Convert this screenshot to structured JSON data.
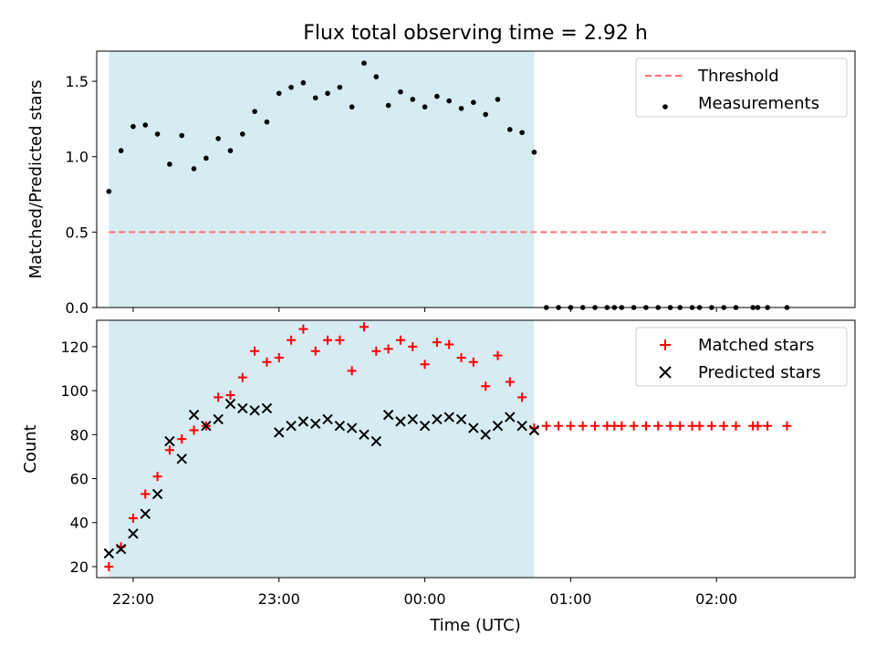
{
  "figure": {
    "title": "Flux total observing time = 2.92 h",
    "xlabel": "Time (UTC)",
    "x_ticks": [
      "22:00",
      "23:00",
      "00:00",
      "01:00",
      "02:00"
    ]
  },
  "chart_data": [
    {
      "type": "scatter",
      "ylabel": "Matched/Predicted stars",
      "ylim": [
        0,
        1.7
      ],
      "y_ticks": [
        "0.0",
        "0.5",
        "1.0",
        "1.5"
      ],
      "xlim": [
        "21:45",
        "02:57"
      ],
      "shaded_region": {
        "from": "21:50",
        "to": "00:45",
        "color": "#add8e6"
      },
      "legend": {
        "placement": "top-right",
        "entries": [
          "Threshold",
          "Measurements"
        ]
      },
      "series": [
        {
          "name": "Threshold",
          "style": "dashed-line",
          "color": "#ff6f6f",
          "points": [
            {
              "x": "21:50",
              "y": 0.5
            },
            {
              "x": "02:45",
              "y": 0.5
            }
          ]
        },
        {
          "name": "Measurements",
          "style": "dot",
          "color": "#000000",
          "points": [
            {
              "x": "21:50",
              "y": 0.77
            },
            {
              "x": "21:55",
              "y": 1.04
            },
            {
              "x": "22:00",
              "y": 1.2
            },
            {
              "x": "22:05",
              "y": 1.21
            },
            {
              "x": "22:10",
              "y": 1.15
            },
            {
              "x": "22:15",
              "y": 0.95
            },
            {
              "x": "22:20",
              "y": 1.14
            },
            {
              "x": "22:25",
              "y": 0.92
            },
            {
              "x": "22:30",
              "y": 0.99
            },
            {
              "x": "22:35",
              "y": 1.12
            },
            {
              "x": "22:40",
              "y": 1.04
            },
            {
              "x": "22:45",
              "y": 1.15
            },
            {
              "x": "22:50",
              "y": 1.3
            },
            {
              "x": "22:55",
              "y": 1.23
            },
            {
              "x": "23:00",
              "y": 1.42
            },
            {
              "x": "23:05",
              "y": 1.46
            },
            {
              "x": "23:10",
              "y": 1.49
            },
            {
              "x": "23:15",
              "y": 1.39
            },
            {
              "x": "23:20",
              "y": 1.42
            },
            {
              "x": "23:25",
              "y": 1.46
            },
            {
              "x": "23:30",
              "y": 1.33
            },
            {
              "x": "23:35",
              "y": 1.62
            },
            {
              "x": "23:40",
              "y": 1.53
            },
            {
              "x": "23:45",
              "y": 1.34
            },
            {
              "x": "23:50",
              "y": 1.43
            },
            {
              "x": "23:55",
              "y": 1.38
            },
            {
              "x": "00:00",
              "y": 1.33
            },
            {
              "x": "00:05",
              "y": 1.4
            },
            {
              "x": "00:10",
              "y": 1.37
            },
            {
              "x": "00:15",
              "y": 1.32
            },
            {
              "x": "00:20",
              "y": 1.36
            },
            {
              "x": "00:25",
              "y": 1.28
            },
            {
              "x": "00:30",
              "y": 1.38
            },
            {
              "x": "00:35",
              "y": 1.18
            },
            {
              "x": "00:40",
              "y": 1.16
            },
            {
              "x": "00:45",
              "y": 1.03
            },
            {
              "x": "00:50",
              "y": 0
            },
            {
              "x": "00:55",
              "y": 0
            },
            {
              "x": "01:00",
              "y": 0
            },
            {
              "x": "01:05",
              "y": 0
            },
            {
              "x": "01:10",
              "y": 0
            },
            {
              "x": "01:15",
              "y": 0
            },
            {
              "x": "01:18",
              "y": 0
            },
            {
              "x": "01:21",
              "y": 0
            },
            {
              "x": "01:26",
              "y": 0
            },
            {
              "x": "01:31",
              "y": 0
            },
            {
              "x": "01:36",
              "y": 0
            },
            {
              "x": "01:41",
              "y": 0
            },
            {
              "x": "01:45",
              "y": 0
            },
            {
              "x": "01:50",
              "y": 0
            },
            {
              "x": "01:53",
              "y": 0
            },
            {
              "x": "01:58",
              "y": 0
            },
            {
              "x": "02:03",
              "y": 0
            },
            {
              "x": "02:08",
              "y": 0
            },
            {
              "x": "02:15",
              "y": 0
            },
            {
              "x": "02:17",
              "y": 0
            },
            {
              "x": "02:21",
              "y": 0
            },
            {
              "x": "02:29",
              "y": 0
            }
          ]
        }
      ]
    },
    {
      "type": "scatter",
      "ylabel": "Count",
      "ylim": [
        15,
        132
      ],
      "y_ticks": [
        "20",
        "40",
        "60",
        "80",
        "100",
        "120"
      ],
      "xlim": [
        "21:45",
        "02:57"
      ],
      "shaded_region": {
        "from": "21:50",
        "to": "00:45",
        "color": "#add8e6"
      },
      "legend": {
        "placement": "top-right",
        "entries": [
          "Matched stars",
          "Predicted stars"
        ]
      },
      "series": [
        {
          "name": "Matched stars",
          "style": "plus",
          "color": "#ff0000",
          "points": [
            {
              "x": "21:50",
              "y": 20
            },
            {
              "x": "21:55",
              "y": 29
            },
            {
              "x": "22:00",
              "y": 42
            },
            {
              "x": "22:05",
              "y": 53
            },
            {
              "x": "22:10",
              "y": 61
            },
            {
              "x": "22:15",
              "y": 73
            },
            {
              "x": "22:20",
              "y": 78
            },
            {
              "x": "22:25",
              "y": 82
            },
            {
              "x": "22:30",
              "y": 84
            },
            {
              "x": "22:35",
              "y": 97
            },
            {
              "x": "22:40",
              "y": 98
            },
            {
              "x": "22:45",
              "y": 106
            },
            {
              "x": "22:50",
              "y": 118
            },
            {
              "x": "22:55",
              "y": 113
            },
            {
              "x": "23:00",
              "y": 115
            },
            {
              "x": "23:05",
              "y": 123
            },
            {
              "x": "23:10",
              "y": 128
            },
            {
              "x": "23:15",
              "y": 118
            },
            {
              "x": "23:20",
              "y": 123
            },
            {
              "x": "23:25",
              "y": 123
            },
            {
              "x": "23:30",
              "y": 109
            },
            {
              "x": "23:35",
              "y": 129
            },
            {
              "x": "23:40",
              "y": 118
            },
            {
              "x": "23:45",
              "y": 119
            },
            {
              "x": "23:50",
              "y": 123
            },
            {
              "x": "23:55",
              "y": 120
            },
            {
              "x": "00:00",
              "y": 112
            },
            {
              "x": "00:05",
              "y": 122
            },
            {
              "x": "00:10",
              "y": 121
            },
            {
              "x": "00:15",
              "y": 115
            },
            {
              "x": "00:20",
              "y": 113
            },
            {
              "x": "00:25",
              "y": 102
            },
            {
              "x": "00:30",
              "y": 116
            },
            {
              "x": "00:35",
              "y": 104
            },
            {
              "x": "00:40",
              "y": 97
            },
            {
              "x": "00:45",
              "y": 83
            },
            {
              "x": "00:50",
              "y": 84
            },
            {
              "x": "00:55",
              "y": 84
            },
            {
              "x": "01:00",
              "y": 84
            },
            {
              "x": "01:05",
              "y": 84
            },
            {
              "x": "01:10",
              "y": 84
            },
            {
              "x": "01:15",
              "y": 84
            },
            {
              "x": "01:18",
              "y": 84
            },
            {
              "x": "01:21",
              "y": 84
            },
            {
              "x": "01:26",
              "y": 84
            },
            {
              "x": "01:31",
              "y": 84
            },
            {
              "x": "01:36",
              "y": 84
            },
            {
              "x": "01:41",
              "y": 84
            },
            {
              "x": "01:45",
              "y": 84
            },
            {
              "x": "01:50",
              "y": 84
            },
            {
              "x": "01:53",
              "y": 84
            },
            {
              "x": "01:58",
              "y": 84
            },
            {
              "x": "02:03",
              "y": 84
            },
            {
              "x": "02:08",
              "y": 84
            },
            {
              "x": "02:15",
              "y": 84
            },
            {
              "x": "02:17",
              "y": 84
            },
            {
              "x": "02:21",
              "y": 84
            },
            {
              "x": "02:29",
              "y": 84
            }
          ]
        },
        {
          "name": "Predicted stars",
          "style": "x",
          "color": "#000000",
          "points": [
            {
              "x": "21:50",
              "y": 26
            },
            {
              "x": "21:55",
              "y": 28
            },
            {
              "x": "22:00",
              "y": 35
            },
            {
              "x": "22:05",
              "y": 44
            },
            {
              "x": "22:10",
              "y": 53
            },
            {
              "x": "22:15",
              "y": 77
            },
            {
              "x": "22:20",
              "y": 69
            },
            {
              "x": "22:25",
              "y": 89
            },
            {
              "x": "22:30",
              "y": 84
            },
            {
              "x": "22:35",
              "y": 87
            },
            {
              "x": "22:40",
              "y": 94
            },
            {
              "x": "22:45",
              "y": 92
            },
            {
              "x": "22:50",
              "y": 91
            },
            {
              "x": "22:55",
              "y": 92
            },
            {
              "x": "23:00",
              "y": 81
            },
            {
              "x": "23:05",
              "y": 84
            },
            {
              "x": "23:10",
              "y": 86
            },
            {
              "x": "23:15",
              "y": 85
            },
            {
              "x": "23:20",
              "y": 87
            },
            {
              "x": "23:25",
              "y": 84
            },
            {
              "x": "23:30",
              "y": 83
            },
            {
              "x": "23:35",
              "y": 80
            },
            {
              "x": "23:40",
              "y": 77
            },
            {
              "x": "23:45",
              "y": 89
            },
            {
              "x": "23:50",
              "y": 86
            },
            {
              "x": "23:55",
              "y": 87
            },
            {
              "x": "00:00",
              "y": 84
            },
            {
              "x": "00:05",
              "y": 87
            },
            {
              "x": "00:10",
              "y": 88
            },
            {
              "x": "00:15",
              "y": 87
            },
            {
              "x": "00:20",
              "y": 83
            },
            {
              "x": "00:25",
              "y": 80
            },
            {
              "x": "00:30",
              "y": 84
            },
            {
              "x": "00:35",
              "y": 88
            },
            {
              "x": "00:40",
              "y": 84
            },
            {
              "x": "00:45",
              "y": 82
            }
          ]
        }
      ]
    }
  ]
}
